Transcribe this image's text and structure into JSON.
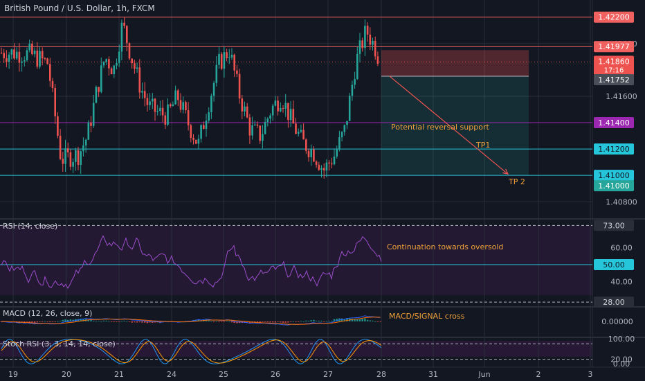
{
  "header": {
    "title": "British Pound / U.S. Dollar, 1h, FXCM"
  },
  "colors": {
    "background": "#131722",
    "bull": "#26a69a",
    "bear": "#ef5350",
    "resistance_line": "#f0615f",
    "support_purple": "#9c27b0",
    "support_cyan": "#26c6da",
    "annotation": "#f0a13a",
    "rsi_line": "#9c4dcc",
    "macd_line": "#2962ff",
    "signal_line": "#ff6d00",
    "stoch_k": "#2196f3",
    "stoch_d": "#ff9800"
  },
  "chart_data": {
    "type": "candlestick",
    "symbol": "British Pound / U.S. Dollar",
    "timeframe": "1h",
    "source": "FXCM",
    "ylim": [
      1.4067,
      1.4233
    ],
    "price_scale_ticks": [
      "1.42000",
      "1.41600",
      "1.40800"
    ],
    "x_tick_labels": [
      "19",
      "20",
      "21",
      "24",
      "25",
      "26",
      "27",
      "28",
      "31",
      "Jun",
      "2",
      "3"
    ],
    "anchor_points": [
      [
        "19",
        1.4193
      ],
      [
        "19",
        1.4192
      ],
      [
        "19",
        1.4185
      ],
      [
        "20",
        1.4112
      ],
      [
        "20",
        1.4114
      ],
      [
        "20",
        1.4116
      ],
      [
        "20",
        1.413
      ],
      [
        "20",
        1.4162
      ],
      [
        "20",
        1.419
      ],
      [
        "21",
        1.418
      ],
      [
        "21",
        1.4215
      ],
      [
        "21",
        1.419
      ],
      [
        "21",
        1.4168
      ],
      [
        "21",
        1.4152
      ],
      [
        "21",
        1.4148
      ],
      [
        "24",
        1.4145
      ],
      [
        "24",
        1.416
      ],
      [
        "24",
        1.414
      ],
      [
        "24",
        1.4123
      ],
      [
        "24",
        1.4155
      ],
      [
        "25",
        1.4185
      ],
      [
        "25",
        1.4195
      ],
      [
        "25",
        1.416
      ],
      [
        "25",
        1.4135
      ],
      [
        "25",
        1.413
      ],
      [
        "26",
        1.415
      ],
      [
        "26",
        1.416
      ],
      [
        "26",
        1.414
      ],
      [
        "26",
        1.4125
      ],
      [
        "26",
        1.4118
      ],
      [
        "27",
        1.4104
      ],
      [
        "27",
        1.4115
      ],
      [
        "27",
        1.4135
      ],
      [
        "27",
        1.4185
      ],
      [
        "27",
        1.421
      ],
      [
        "28",
        1.4196
      ],
      [
        "28",
        1.4186
      ]
    ],
    "horizontal_levels": [
      {
        "price": 1.422,
        "label": "1.42200",
        "color": "#f0615f"
      },
      {
        "price": 1.41977,
        "label": "1.41977",
        "color": "#f0615f"
      },
      {
        "price": 1.414,
        "label": "1.41400",
        "color": "#9c27b0"
      },
      {
        "price": 1.412,
        "label": "1.41200",
        "color": "#26c6da"
      },
      {
        "price": 1.41,
        "label": "1.41000",
        "color": "#26c6da"
      }
    ],
    "last_price": {
      "price": 1.4186,
      "label": "1.41860",
      "countdown": "17:16"
    },
    "extra_label": {
      "price": 1.41,
      "label": "1.41000"
    },
    "position": {
      "type": "short",
      "stop_price": 1.4195,
      "entry_price": 1.41752,
      "target_price": 1.41,
      "entry_label": "1.41752"
    },
    "annotations": [
      {
        "text": "Potential reversal support",
        "price": 1.4139
      },
      {
        "text": "TP1",
        "price": 1.4121
      },
      {
        "text": "TP 2",
        "price": 1.40985
      }
    ],
    "projection_arrow": {
      "from_date": "28",
      "from_price": 1.41752,
      "to_date": "Jun",
      "to_price": 1.4101
    },
    "indicators": {
      "rsi": {
        "title": "RSI (14, close)",
        "ylim": [
          26,
          76
        ],
        "ticks": [
          "60.00",
          "40.00"
        ],
        "levels": [
          {
            "value": 73.0,
            "label": "73.00"
          },
          {
            "value": 50.0,
            "label": "50.00"
          },
          {
            "value": 28.0,
            "label": "28.00"
          }
        ],
        "annotation": "Continuation towards oversold"
      },
      "macd": {
        "title": "MACD (12, 26, close, 9)",
        "ticks": [
          "0.00000"
        ],
        "annotation": "MACD/SIGNAL cross"
      },
      "stoch_rsi": {
        "title": "Stoch RSI (3, 3, 14, 14, close)",
        "ylim": [
          0,
          100
        ],
        "ticks": [
          "100.00",
          "20.00",
          "0.00"
        ]
      }
    }
  }
}
